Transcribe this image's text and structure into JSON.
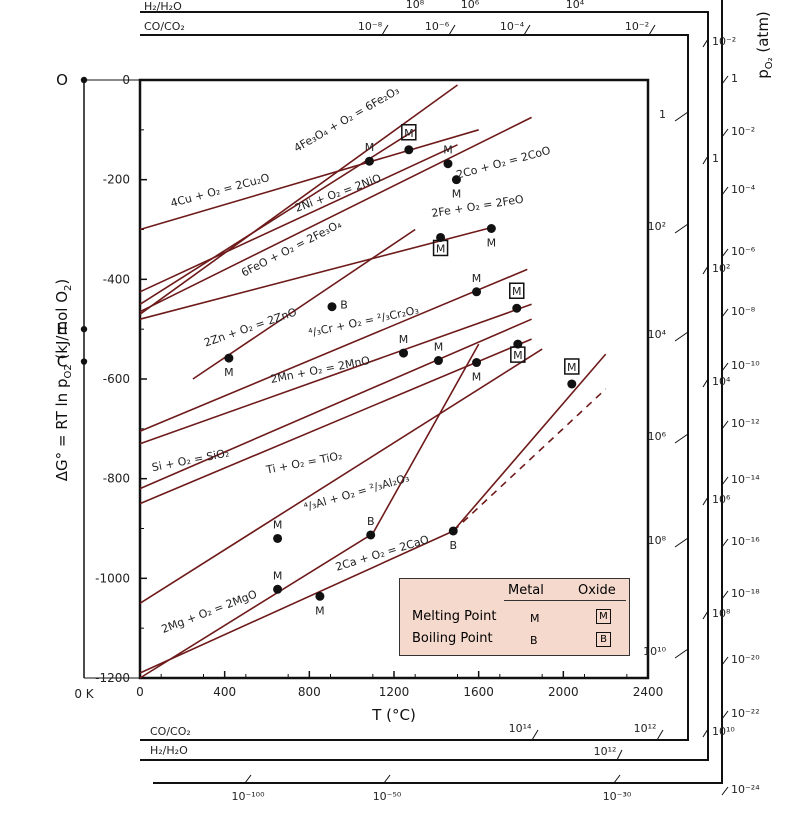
{
  "chart_data": {
    "type": "line",
    "xlabel": "T (°C)",
    "ylabel": "ΔG° = RT ln p",
    "ylabel_sub": "O2",
    "ylabel_unit": "(kJ/mol O",
    "ylabel_unit_sub": "2",
    "xlim": [
      0,
      2400
    ],
    "ylim": [
      -1200,
      0
    ],
    "x_ticks": [
      0,
      400,
      800,
      1200,
      1600,
      2000,
      2400
    ],
    "y_ticks": [
      0,
      -200,
      -400,
      -600,
      -800,
      -1000,
      -1200
    ],
    "zero_kelvin_label": "0 K",
    "left_scale_points": [
      {
        "label": "O",
        "dg": 0
      },
      {
        "label": "H",
        "dg": -500
      },
      {
        "label": "C",
        "dg": -565
      }
    ],
    "series": [
      {
        "name": "4Cu + O2 = 2Cu2O",
        "pts": [
          [
            0,
            -300
          ],
          [
            1600,
            -100
          ]
        ]
      },
      {
        "name": "4Fe3O4 + O2 = 6Fe2O3",
        "pts": [
          [
            0,
            -470
          ],
          [
            1500,
            -10
          ]
        ]
      },
      {
        "name": "2Ni + O2 = 2NiO",
        "pts": [
          [
            0,
            -425
          ],
          [
            1500,
            -130
          ]
        ]
      },
      {
        "name": "6FeO + O2 = 2Fe3O4",
        "pts": [
          [
            0,
            -450
          ],
          [
            1300,
            -100
          ]
        ]
      },
      {
        "name": "2Co + O2 = 2CoO",
        "pts": [
          [
            0,
            -465
          ],
          [
            1850,
            -75
          ]
        ]
      },
      {
        "name": "2Fe + O2 = 2FeO",
        "pts": [
          [
            0,
            -480
          ],
          [
            1670,
            -295
          ]
        ]
      },
      {
        "name": "2Zn + O2 = 2ZnO",
        "pts": [
          [
            250,
            -600
          ],
          [
            1300,
            -300
          ]
        ]
      },
      {
        "name": "4/3Cr + O2 = 2/3Cr2O3",
        "pts": [
          [
            0,
            -705
          ],
          [
            1830,
            -380
          ]
        ]
      },
      {
        "name": "2Mn + O2 = 2MnO",
        "pts": [
          [
            0,
            -730
          ],
          [
            1850,
            -450
          ]
        ]
      },
      {
        "name": "Si + O2 = SiO2",
        "pts": [
          [
            0,
            -820
          ],
          [
            1850,
            -480
          ]
        ]
      },
      {
        "name": "Ti + O2 = TiO2",
        "pts": [
          [
            0,
            -850
          ],
          [
            1850,
            -520
          ]
        ]
      },
      {
        "name": "4/3Al + O2 = 2/3Al2O3",
        "pts": [
          [
            0,
            -1050
          ],
          [
            1900,
            -540
          ]
        ]
      },
      {
        "name": "2Mg + O2 = 2MgO",
        "pts": [
          [
            0,
            -1200
          ],
          [
            1100,
            -910
          ],
          [
            1600,
            -530
          ]
        ]
      },
      {
        "name": "2Ca + O2 = 2CaO",
        "pts": [
          [
            0,
            -1190
          ],
          [
            1480,
            -905
          ]
        ],
        "dashed_ext": [
          [
            1480,
            -905
          ],
          [
            2200,
            -620
          ]
        ]
      },
      {
        "name": "",
        "pts": [
          [
            1480,
            -905
          ],
          [
            2200,
            -550
          ]
        ]
      }
    ],
    "points": [
      {
        "x": 1084,
        "y": -163,
        "label": "M",
        "label_pos": "above"
      },
      {
        "x": 1270,
        "y": -140,
        "label": "M",
        "boxed": true,
        "label_pos": "above"
      },
      {
        "x": 1455,
        "y": -168,
        "label": "M",
        "label_pos": "above"
      },
      {
        "x": 1495,
        "y": -200,
        "label": "M",
        "label_pos": "below"
      },
      {
        "x": 1420,
        "y": -316,
        "label": "M",
        "boxed": true,
        "label_pos": "below"
      },
      {
        "x": 1660,
        "y": -298,
        "label": "M",
        "label_pos": "below"
      },
      {
        "x": 907,
        "y": -455,
        "label": "B",
        "label_pos": "right"
      },
      {
        "x": 420,
        "y": -558,
        "label": "M",
        "label_pos": "below"
      },
      {
        "x": 1245,
        "y": -548,
        "label": "M",
        "label_pos": "above"
      },
      {
        "x": 1410,
        "y": -563,
        "label": "M",
        "label_pos": "above"
      },
      {
        "x": 1590,
        "y": -425,
        "label": "M",
        "label_pos": "above"
      },
      {
        "x": 1780,
        "y": -458,
        "label": "M",
        "boxed": true,
        "label_pos": "above"
      },
      {
        "x": 1590,
        "y": -567,
        "label": "M",
        "label_pos": "below"
      },
      {
        "x": 1785,
        "y": -530,
        "label": "M",
        "boxed": true,
        "label_pos": "below"
      },
      {
        "x": 2040,
        "y": -610,
        "label": "M",
        "boxed": true,
        "label_pos": "above"
      },
      {
        "x": 650,
        "y": -920,
        "label": "M",
        "label_pos": "above"
      },
      {
        "x": 1090,
        "y": -913,
        "label": "B",
        "label_pos": "above"
      },
      {
        "x": 1480,
        "y": -905,
        "label": "B",
        "label_pos": "below"
      },
      {
        "x": 650,
        "y": -1022,
        "label": "M",
        "label_pos": "above"
      },
      {
        "x": 850,
        "y": -1036,
        "label": "M",
        "label_pos": "below"
      }
    ],
    "labels": [
      {
        "text": "4Cu + O₂ = 2Cu₂O",
        "x": 150,
        "y": -255,
        "angle": -15
      },
      {
        "text": "4Fe₃O₄ + O₂ = 6Fe₂O₃",
        "x": 740,
        "y": -145,
        "angle": -30
      },
      {
        "text": "2Ni + O₂ = 2NiO",
        "x": 740,
        "y": -265,
        "angle": -20
      },
      {
        "text": "6FeO + O₂ = 2Fe₃O₄",
        "x": 490,
        "y": -395,
        "angle": -27
      },
      {
        "text": "2Co + O₂ = 2CoO",
        "x": 1500,
        "y": -198,
        "angle": -15
      },
      {
        "text": "2Fe + O₂ = 2FeO",
        "x": 1380,
        "y": -275,
        "angle": -9
      },
      {
        "text": "2Zn + O₂ = 2ZnO",
        "x": 310,
        "y": -535,
        "angle": -19
      },
      {
        "text": "⁴/₃Cr + O₂ = ²/₃Cr₂O₃",
        "x": 800,
        "y": -515,
        "angle": -12
      },
      {
        "text": "2Mn + O₂ = 2MnO",
        "x": 620,
        "y": -608,
        "angle": -11
      },
      {
        "text": "Si + O₂ = SiO₂",
        "x": 60,
        "y": -785,
        "angle": -11
      },
      {
        "text": "Ti + O₂ = TiO₂",
        "x": 600,
        "y": -790,
        "angle": -11
      },
      {
        "text": "⁴/₃Al + O₂ = ²/₃Al₂O₃",
        "x": 780,
        "y": -865,
        "angle": -16
      },
      {
        "text": "2Ca + O₂ = 2CaO",
        "x": 930,
        "y": -985,
        "angle": -17
      },
      {
        "text": "2Mg + O₂ = 2MgO",
        "x": 110,
        "y": -1110,
        "angle": -21
      }
    ],
    "legend": {
      "placement": "bottom-right",
      "col_metal": "Metal",
      "col_oxide": "Oxide",
      "rows": [
        {
          "label": "Melting Point",
          "symbol": "M"
        },
        {
          "label": "Boiling Point",
          "symbol": "B"
        }
      ]
    },
    "top_scales": [
      {
        "name": "H₂/H₂O",
        "ticks": [
          "10⁸",
          "10⁶",
          "10⁴"
        ]
      },
      {
        "name": "CO/CO₂",
        "ticks": [
          "10⁻⁸",
          "10⁻⁶",
          "10⁻⁴",
          "10⁻²"
        ]
      }
    ],
    "bottom_scales": [
      {
        "name": "CO/CO₂",
        "ticks": [
          "10¹⁴",
          "10¹²"
        ]
      },
      {
        "name": "H₂/H₂O",
        "ticks": [
          "10¹²"
        ]
      }
    ],
    "bottom_po2_ticks": [
      "10⁻¹⁰⁰",
      "10⁻⁵⁰",
      "10⁻³⁰"
    ],
    "right_inner_ticks": [
      "1",
      "10²",
      "10⁴",
      "10⁶",
      "10⁸",
      "10¹⁰"
    ],
    "right_mid_ticks": [
      "10⁻²",
      "1",
      "10²",
      "10⁴",
      "10⁶",
      "10⁸",
      "10¹⁰"
    ],
    "po2_axis_label": "p",
    "po2_axis_sub": "O₂",
    "po2_axis_unit": "(atm)",
    "po2_ticks": [
      "1",
      "10⁻²",
      "10⁻⁴",
      "10⁻⁶",
      "10⁻⁸",
      "10⁻¹⁰",
      "10⁻¹²",
      "10⁻¹⁴",
      "10⁻¹⁶",
      "10⁻¹⁸",
      "10⁻²⁰",
      "10⁻²²",
      "10⁻²⁴"
    ]
  }
}
